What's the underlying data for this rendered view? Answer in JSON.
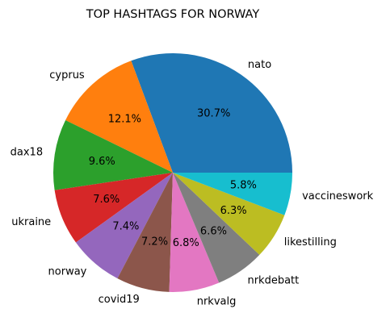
{
  "chart_data": {
    "type": "pie",
    "title": "TOP HASHTAGS FOR NORWAY",
    "categories": [
      "nato",
      "cyprus",
      "dax18",
      "ukraine",
      "norway",
      "covid19",
      "nrkvalg",
      "nrkdebatt",
      "likestilling",
      "vaccineswork"
    ],
    "values": [
      30.7,
      12.1,
      9.6,
      7.6,
      7.4,
      7.2,
      6.8,
      6.6,
      6.3,
      5.8
    ],
    "value_labels": [
      "30.7%",
      "12.1%",
      "9.6%",
      "7.6%",
      "7.4%",
      "7.2%",
      "6.8%",
      "6.6%",
      "6.3%",
      "5.8%"
    ],
    "colors": [
      "#1f77b4",
      "#ff7f0e",
      "#2ca02c",
      "#d62728",
      "#9467bd",
      "#8c564b",
      "#e377c2",
      "#7f7f7f",
      "#bcbd22",
      "#17becf"
    ],
    "start_angle_deg": 0,
    "direction": "counterclockwise",
    "legend": "none"
  }
}
